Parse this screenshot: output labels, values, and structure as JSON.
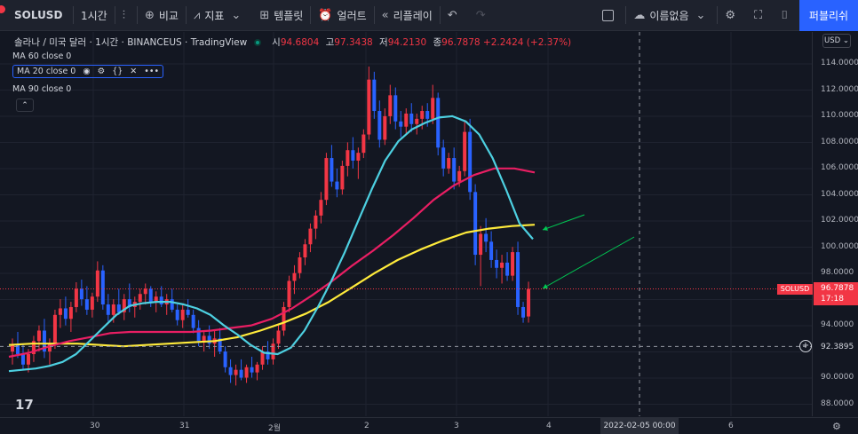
{
  "toolbar": {
    "symbol": "SOLUSD",
    "interval": "1시간",
    "compare": "비교",
    "indicators": "지표",
    "templates": "템플릿",
    "alerts": "얼러트",
    "replay": "리플레이",
    "layout_name": "이름없음",
    "publish": "퍼블리쉬"
  },
  "legend": {
    "title": "솔라나 / 미국 달러 · 1시간 · BINANCEUS · TradingView",
    "open_label": "시",
    "open": "94.6804",
    "high_label": "고",
    "high": "97.3438",
    "low_label": "저",
    "low": "94.2130",
    "close_label": "종",
    "close": "96.7878",
    "change": "+2.2424 (+2.37%)",
    "ma60": "MA 60 close 0",
    "ma20": "MA 20 close 0",
    "ma90": "MA 90 close 0"
  },
  "price_axis": {
    "currency": "USD",
    "labels": [
      "114.0000",
      "112.0000",
      "110.0000",
      "108.0000",
      "106.0000",
      "104.0000",
      "102.0000",
      "100.0000",
      "98.0000",
      "96.0000",
      "94.0000",
      "92.0000",
      "90.0000",
      "88.0000"
    ],
    "last_price": "96.7878",
    "countdown": "17:18",
    "symbol_tag": "SOLUSD",
    "crosshair_price": "92.3895"
  },
  "time_axis": {
    "labels": [
      "30",
      "31",
      "2월",
      "2",
      "3",
      "4",
      "6"
    ],
    "crosshair_date": "2022-02-05  00:00"
  },
  "colors": {
    "up": "#f23645",
    "down": "#2962ff",
    "ma20": "#4dd0e1",
    "ma60": "#e91e63",
    "ma90": "#ffeb3b",
    "arrow": "#00c853"
  },
  "chart_data": {
    "type": "candlestick",
    "ylim": [
      87,
      116
    ],
    "candles": [
      [
        92.0,
        93.0,
        91.0,
        92.5
      ],
      [
        92.5,
        93.5,
        91.5,
        91.8
      ],
      [
        91.8,
        92.6,
        90.6,
        91.0
      ],
      [
        91.0,
        92.2,
        90.4,
        91.8
      ],
      [
        91.8,
        93.2,
        91.2,
        92.8
      ],
      [
        92.8,
        94.0,
        92.0,
        93.6
      ],
      [
        93.6,
        94.5,
        91.5,
        92.0
      ],
      [
        92.0,
        93.0,
        91.0,
        92.6
      ],
      [
        92.6,
        95.2,
        92.2,
        94.8
      ],
      [
        94.8,
        96.0,
        93.8,
        95.3
      ],
      [
        95.3,
        96.2,
        94.0,
        94.5
      ],
      [
        94.5,
        95.8,
        93.5,
        95.4
      ],
      [
        95.4,
        97.3,
        95.0,
        96.8
      ],
      [
        96.8,
        97.5,
        95.5,
        96.0
      ],
      [
        96.0,
        97.0,
        94.8,
        95.2
      ],
      [
        95.2,
        96.5,
        94.6,
        96.2
      ],
      [
        96.2,
        98.9,
        95.8,
        98.2
      ],
      [
        98.2,
        98.6,
        95.2,
        95.6
      ],
      [
        95.6,
        96.4,
        94.3,
        94.8
      ],
      [
        94.8,
        96.0,
        94.2,
        95.6
      ],
      [
        95.6,
        96.8,
        94.8,
        95.0
      ],
      [
        95.0,
        96.4,
        94.4,
        96.0
      ],
      [
        96.0,
        97.2,
        95.0,
        95.4
      ],
      [
        95.4,
        96.2,
        94.6,
        95.8
      ],
      [
        95.8,
        96.8,
        95.2,
        96.4
      ],
      [
        96.4,
        97.2,
        95.6,
        96.8
      ],
      [
        96.8,
        97.0,
        95.4,
        95.8
      ],
      [
        95.8,
        96.6,
        95.0,
        96.2
      ],
      [
        96.2,
        97.0,
        95.4,
        95.6
      ],
      [
        95.6,
        96.4,
        94.8,
        96.0
      ],
      [
        96.0,
        96.8,
        95.0,
        95.2
      ],
      [
        95.2,
        95.6,
        94.0,
        94.4
      ],
      [
        94.4,
        95.6,
        93.8,
        95.2
      ],
      [
        95.2,
        96.0,
        94.6,
        94.8
      ],
      [
        94.8,
        95.2,
        93.4,
        93.8
      ],
      [
        93.8,
        94.4,
        92.4,
        92.8
      ],
      [
        92.8,
        93.6,
        92.0,
        93.2
      ],
      [
        93.2,
        94.0,
        92.2,
        92.6
      ],
      [
        92.6,
        93.6,
        91.6,
        93.0
      ],
      [
        93.0,
        93.8,
        91.8,
        92.0
      ],
      [
        92.0,
        92.4,
        90.4,
        90.8
      ],
      [
        90.8,
        91.4,
        89.6,
        90.2
      ],
      [
        90.2,
        91.0,
        89.4,
        90.6
      ],
      [
        90.6,
        91.4,
        89.8,
        90.0
      ],
      [
        90.0,
        91.0,
        89.6,
        90.8
      ],
      [
        90.8,
        91.6,
        90.0,
        90.4
      ],
      [
        90.4,
        91.2,
        89.8,
        91.0
      ],
      [
        91.0,
        92.4,
        90.6,
        92.0
      ],
      [
        92.0,
        92.8,
        91.0,
        91.4
      ],
      [
        91.4,
        93.0,
        91.0,
        92.6
      ],
      [
        92.6,
        94.0,
        92.2,
        93.6
      ],
      [
        93.6,
        95.8,
        93.2,
        95.4
      ],
      [
        95.4,
        97.8,
        95.0,
        97.4
      ],
      [
        97.4,
        98.6,
        96.4,
        98.0
      ],
      [
        98.0,
        99.6,
        97.6,
        99.2
      ],
      [
        99.2,
        100.6,
        98.6,
        100.2
      ],
      [
        100.2,
        101.8,
        99.6,
        101.4
      ],
      [
        101.4,
        102.8,
        100.6,
        102.4
      ],
      [
        102.4,
        104.2,
        101.8,
        103.6
      ],
      [
        103.6,
        107.2,
        103.2,
        106.8
      ],
      [
        106.8,
        107.8,
        104.6,
        105.0
      ],
      [
        105.0,
        106.0,
        103.8,
        104.4
      ],
      [
        104.4,
        106.6,
        104.0,
        106.2
      ],
      [
        106.2,
        108.0,
        105.4,
        107.4
      ],
      [
        107.4,
        108.4,
        106.0,
        106.6
      ],
      [
        106.6,
        107.6,
        105.2,
        107.2
      ],
      [
        107.2,
        109.0,
        106.8,
        108.6
      ],
      [
        108.6,
        113.8,
        108.2,
        112.8
      ],
      [
        112.8,
        113.4,
        109.8,
        110.4
      ],
      [
        110.4,
        111.2,
        107.6,
        108.2
      ],
      [
        108.2,
        110.6,
        107.8,
        110.0
      ],
      [
        110.0,
        112.4,
        109.4,
        111.6
      ],
      [
        111.6,
        112.2,
        109.0,
        109.6
      ],
      [
        109.6,
        110.4,
        108.4,
        109.2
      ],
      [
        109.2,
        110.6,
        108.6,
        110.2
      ],
      [
        110.2,
        111.0,
        108.8,
        109.4
      ],
      [
        109.4,
        110.2,
        108.6,
        109.8
      ],
      [
        109.8,
        110.8,
        109.0,
        110.4
      ],
      [
        110.4,
        111.0,
        109.2,
        109.8
      ],
      [
        109.8,
        112.4,
        109.4,
        111.4
      ],
      [
        111.4,
        111.8,
        107.0,
        107.6
      ],
      [
        107.6,
        108.2,
        105.4,
        106.0
      ],
      [
        106.0,
        107.2,
        105.6,
        106.8
      ],
      [
        106.8,
        107.6,
        104.4,
        105.0
      ],
      [
        105.0,
        106.2,
        104.6,
        105.8
      ],
      [
        105.8,
        109.6,
        105.4,
        108.8
      ],
      [
        108.8,
        109.8,
        103.6,
        104.2
      ],
      [
        104.2,
        104.8,
        98.6,
        99.4
      ],
      [
        99.4,
        101.6,
        97.0,
        101.0
      ],
      [
        101.0,
        102.2,
        99.6,
        100.4
      ],
      [
        100.4,
        101.2,
        98.4,
        99.0
      ],
      [
        99.0,
        99.8,
        97.6,
        98.4
      ],
      [
        98.4,
        99.4,
        97.2,
        98.8
      ],
      [
        98.8,
        99.6,
        97.4,
        97.8
      ],
      [
        97.8,
        100.0,
        97.4,
        99.6
      ],
      [
        99.6,
        100.4,
        94.8,
        95.4
      ],
      [
        95.4,
        95.8,
        94.2,
        94.6
      ],
      [
        94.68,
        97.34,
        94.21,
        96.79
      ]
    ],
    "ma20": [
      90.5,
      90.6,
      90.7,
      90.9,
      91.2,
      91.8,
      92.8,
      93.8,
      94.8,
      95.5,
      95.7,
      95.8,
      95.8,
      95.6,
      95.3,
      94.8,
      94.0,
      93.3,
      92.5,
      91.9,
      91.8,
      92.3,
      93.6,
      95.4,
      97.4,
      99.6,
      102.0,
      104.4,
      106.6,
      108.1,
      109.0,
      109.5,
      109.9,
      110.0,
      109.6,
      108.6,
      106.8,
      104.4,
      101.8,
      100.6
    ],
    "ma60": [
      91.6,
      91.9,
      92.4,
      92.8,
      93.1,
      93.4,
      93.5,
      93.5,
      93.5,
      93.5,
      93.6,
      93.8,
      94.0,
      94.5,
      95.3,
      96.3,
      97.4,
      98.6,
      99.7,
      100.9,
      102.2,
      103.6,
      104.7,
      105.5,
      106.0,
      106.0,
      105.7
    ],
    "ma90": [
      92.5,
      92.6,
      92.6,
      92.6,
      92.5,
      92.4,
      92.5,
      92.6,
      92.7,
      92.8,
      93.1,
      93.6,
      94.2,
      94.9,
      95.8,
      96.9,
      98.0,
      99.0,
      99.8,
      100.5,
      101.1,
      101.4,
      101.6,
      101.7
    ]
  }
}
